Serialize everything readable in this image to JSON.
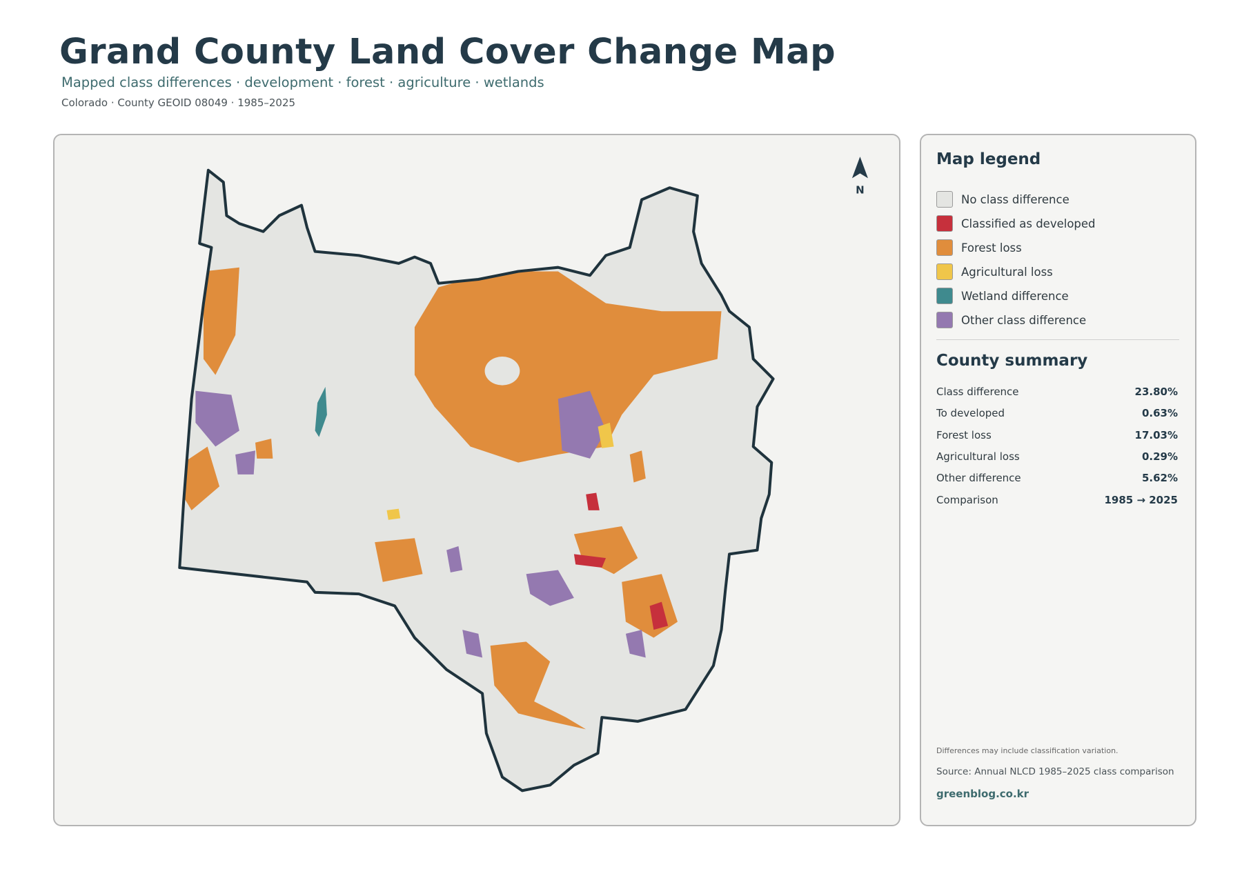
{
  "header": {
    "title": "Grand County Land Cover Change Map",
    "subtitle": "Mapped class differences · development · forest · agriculture · wetlands",
    "meta": "Colorado · County GEOID 08049 · 1985–2025"
  },
  "map": {
    "north_label": "N"
  },
  "legend": {
    "title": "Map legend",
    "items": [
      {
        "label": "No class difference",
        "color": "#e4e5e2"
      },
      {
        "label": "Classified as developed",
        "color": "#c6303c"
      },
      {
        "label": "Forest loss",
        "color": "#e08d3c"
      },
      {
        "label": "Agricultural loss",
        "color": "#f0c64a"
      },
      {
        "label": "Wetland difference",
        "color": "#3f8a8e"
      },
      {
        "label": "Other class difference",
        "color": "#9479b0"
      }
    ]
  },
  "summary": {
    "title": "County summary",
    "rows": [
      {
        "label": "Class difference",
        "value": "23.80%"
      },
      {
        "label": "To developed",
        "value": "0.63%"
      },
      {
        "label": "Forest loss",
        "value": "17.03%"
      },
      {
        "label": "Agricultural loss",
        "value": "0.29%"
      },
      {
        "label": "Other difference",
        "value": "5.62%"
      },
      {
        "label": "Comparison",
        "value": "1985 → 2025"
      }
    ]
  },
  "footer": {
    "note": "Differences may include classification variation.",
    "source": "Source: Annual NLCD 1985–2025 class comparison",
    "site": "greenblog.co.kr"
  }
}
